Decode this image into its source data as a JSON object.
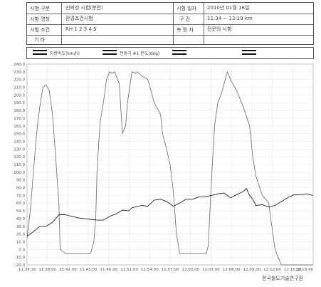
{
  "header": {
    "label_test_type": "시험 구분",
    "value_test_type": "신뢰성 시험(분전)",
    "label_test_name": "시험 명칭",
    "value_test_name": "환경조건시험",
    "label_test_cond": "시험 조건",
    "value_test_cond": "RH 1 2 3 4 5",
    "label_other": "기 타",
    "value_other": "",
    "label_date": "시험 일자",
    "value_date": "2010년 01월 18일",
    "label_interval": "구 간",
    "value_interval": "11:34 ~ 12:19 km",
    "label_operator": "측 정 자",
    "value_operator": "전문의 시험"
  },
  "legend": [
    {
      "label": "차량속도(km/h)"
    },
    {
      "label": "전동기 #1 온도(deg)"
    },
    {
      "label": ""
    },
    {
      "label": ""
    }
  ],
  "chart_data": {
    "type": "line",
    "title": "",
    "xlabel": "",
    "ylabel": "",
    "ylim": [
      -20,
      240
    ],
    "yticks": [
      "240.0",
      "230.0",
      "220.0",
      "210.0",
      "200.0",
      "190.0",
      "180.0",
      "170.0",
      "160.0",
      "150.0",
      "140.0",
      "130.0",
      "120.0",
      "110.0",
      "100.0",
      "90.0",
      "80.0",
      "70.0",
      "60.0",
      "50.0",
      "40.0",
      "30.0",
      "20.0",
      "10.0",
      "0.0",
      "-10.0",
      "-20.0"
    ],
    "xticks": [
      "11:34:30",
      "11:38:00",
      "11:42:00",
      "11:45:00",
      "11:48:00",
      "11:51:00",
      "11:54:00",
      "11:57:00",
      "12:00:00",
      "12:03:00",
      "12:06:00",
      "12:09:00",
      "12:12:00",
      "12:15:00",
      "12:19:40"
    ],
    "series": [
      {
        "name": "차량속도(km/h)",
        "x": [
          0.0,
          0.5,
          1.0,
          1.5,
          2.0,
          2.5,
          3.0,
          3.5,
          4.0,
          4.5,
          5.0,
          5.2,
          6.0,
          7.0,
          8.0,
          8.5,
          9.0,
          9.5,
          10.0,
          10.5,
          10.8,
          11.0,
          11.3,
          11.5,
          12.0,
          12.5,
          13.0,
          13.3,
          13.8,
          14.0,
          14.5,
          15.0,
          15.5,
          15.8,
          16.5,
          17.0,
          17.3,
          18.0,
          19.0,
          20.0,
          21.0,
          21.3,
          21.8,
          22.5,
          23.0,
          23.5,
          24.0,
          24.2,
          24.6,
          25.0,
          25.5,
          26.0,
          26.2,
          26.6,
          27.0,
          27.5,
          28.0,
          28.2,
          28.5,
          29.0,
          29.5,
          30.0,
          30.5,
          31.0,
          31.5,
          32.0,
          33.0,
          34.0,
          35.0,
          35.5,
          36.0,
          37.0,
          38.0,
          38.5,
          39.0,
          39.5,
          40.0,
          40.5,
          41.0,
          41.5,
          42.0,
          42.5,
          43.0,
          43.5,
          43.8,
          44.2,
          44.6,
          45.0
        ],
        "y": [
          15,
          50,
          100,
          150,
          185,
          210,
          213,
          205,
          175,
          120,
          60,
          0,
          -5,
          -5,
          -5,
          -5,
          -5,
          -5,
          -5,
          10,
          40,
          100,
          140,
          165,
          190,
          220,
          230,
          228,
          230,
          225,
          215,
          150,
          160,
          190,
          230,
          228,
          230,
          225,
          220,
          190,
          175,
          150,
          135,
          110,
          75,
          20,
          -5,
          -5,
          -5,
          -5,
          -5,
          -5,
          -5,
          -5,
          -5,
          -5,
          -5,
          -5,
          5,
          90,
          160,
          190,
          200,
          215,
          230,
          220,
          205,
          185,
          160,
          120,
          95,
          70,
          60,
          30,
          0,
          -10,
          -20,
          -20,
          -20,
          -20,
          -20,
          -20,
          -20,
          -20,
          -20,
          -20,
          -20,
          -20
        ]
      },
      {
        "name": "전동기 #1 온도(deg)",
        "x": [
          0.0,
          1.0,
          2.0,
          3.0,
          4.0,
          5.0,
          6.0,
          7.0,
          8.0,
          9.0,
          10.0,
          11.0,
          12.0,
          13.0,
          14.0,
          15.0,
          16.0,
          16.5,
          17.0,
          18.0,
          19.0,
          20.0,
          21.0,
          22.0,
          23.0,
          24.0,
          25.0,
          26.0,
          27.0,
          28.0,
          29.0,
          30.0,
          31.0,
          32.0,
          33.0,
          34.0,
          34.5,
          35.0,
          35.5,
          36.0,
          37.0,
          38.0,
          39.0,
          40.0,
          41.0,
          42.0,
          43.0,
          44.0,
          45.0
        ],
        "y": [
          17,
          23,
          30,
          30,
          35,
          45,
          45,
          43,
          41,
          40,
          39,
          38,
          38,
          43,
          46,
          51,
          50,
          54,
          55,
          57,
          56,
          64,
          65,
          62,
          56,
          60,
          65,
          65,
          68,
          68,
          70,
          72,
          73,
          67,
          71,
          75,
          79,
          70,
          65,
          57,
          58,
          55,
          57,
          62,
          67,
          71,
          71,
          72,
          70
        ]
      }
    ],
    "x_range": [
      0,
      45
    ],
    "grid": true
  },
  "footer": "한국철도기술연구원"
}
